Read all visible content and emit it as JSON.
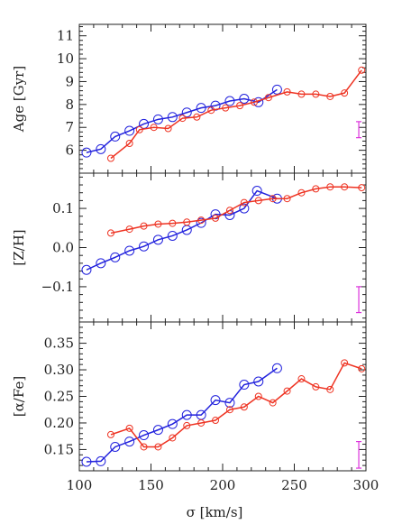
{
  "chart_data": {
    "type": "line",
    "xlabel": "σ [km/s]",
    "xlim": [
      100,
      300
    ],
    "xticks": [
      100,
      150,
      200,
      250,
      300
    ],
    "colors": {
      "blue": "#2222dd",
      "red": "#ee3322",
      "errorbar": "#dd33dd"
    },
    "panels": [
      {
        "ylabel": "Age [Gyr]",
        "ylim": [
          5.0,
          11.5
        ],
        "yticks": [
          6,
          7,
          8,
          9,
          10,
          11
        ],
        "errorbar": {
          "x": 295,
          "y": 6.9,
          "halfwidth": 0.35
        },
        "series": [
          {
            "color": "blue",
            "x": [
              105,
              115,
              125,
              135,
              145,
              155,
              165,
              175,
              185,
              195,
              205,
              215,
              225,
              238
            ],
            "y": [
              5.9,
              6.05,
              6.6,
              6.85,
              7.15,
              7.35,
              7.45,
              7.65,
              7.85,
              7.95,
              8.15,
              8.25,
              8.1,
              8.65
            ]
          },
          {
            "color": "red",
            "x": [
              122,
              135,
              142,
              152,
              162,
              172,
              182,
              192,
              202,
              212,
              222,
              232,
              245,
              255,
              265,
              275,
              285,
              297
            ],
            "y": [
              5.65,
              6.3,
              6.9,
              7.0,
              6.95,
              7.4,
              7.45,
              7.75,
              7.85,
              7.95,
              8.1,
              8.3,
              8.55,
              8.45,
              8.45,
              8.35,
              8.5,
              9.5
            ]
          }
        ]
      },
      {
        "ylabel": "[Z/H]",
        "ylim": [
          -0.19,
          0.19
        ],
        "yticks": [
          -0.1,
          0.0,
          0.1
        ],
        "yticklabels": [
          "−0.1",
          "0.0",
          "0.1"
        ],
        "errorbar": {
          "x": 295,
          "y": -0.133,
          "halfwidth": 0.033
        },
        "series": [
          {
            "color": "blue",
            "x": [
              105,
              115,
              125,
              135,
              145,
              155,
              165,
              175,
              185,
              195,
              205,
              215,
              224,
              238
            ],
            "y": [
              -0.057,
              -0.04,
              -0.025,
              -0.008,
              0.003,
              0.02,
              0.03,
              0.045,
              0.063,
              0.085,
              0.083,
              0.1,
              0.145,
              0.125
            ]
          },
          {
            "color": "red",
            "x": [
              122,
              135,
              145,
              155,
              165,
              175,
              185,
              195,
              205,
              215,
              225,
              235,
              245,
              255,
              265,
              275,
              285,
              297
            ],
            "y": [
              0.037,
              0.047,
              0.055,
              0.06,
              0.062,
              0.065,
              0.07,
              0.075,
              0.095,
              0.115,
              0.12,
              0.125,
              0.125,
              0.14,
              0.15,
              0.155,
              0.155,
              0.153
            ]
          }
        ]
      },
      {
        "ylabel": "[α/Fe]",
        "ylim": [
          0.11,
          0.39
        ],
        "yticks": [
          0.15,
          0.2,
          0.25,
          0.3,
          0.35
        ],
        "yticklabels": [
          "0.15",
          "0.20",
          "0.25",
          "0.30",
          "0.35"
        ],
        "errorbar": {
          "x": 295,
          "y": 0.14,
          "halfwidth": 0.025
        },
        "series": [
          {
            "color": "blue",
            "x": [
              105,
              115,
              125,
              135,
              145,
              155,
              165,
              175,
              185,
              195,
              205,
              215,
              225,
              238
            ],
            "y": [
              0.127,
              0.128,
              0.155,
              0.165,
              0.177,
              0.187,
              0.198,
              0.215,
              0.215,
              0.243,
              0.238,
              0.272,
              0.278,
              0.303
            ]
          },
          {
            "color": "red",
            "x": [
              122,
              135,
              145,
              155,
              165,
              175,
              185,
              195,
              205,
              215,
              225,
              235,
              245,
              255,
              265,
              275,
              285,
              297
            ],
            "y": [
              0.178,
              0.19,
              0.155,
              0.155,
              0.172,
              0.195,
              0.2,
              0.205,
              0.225,
              0.23,
              0.25,
              0.238,
              0.26,
              0.283,
              0.268,
              0.263,
              0.313,
              0.302
            ]
          }
        ]
      }
    ]
  }
}
